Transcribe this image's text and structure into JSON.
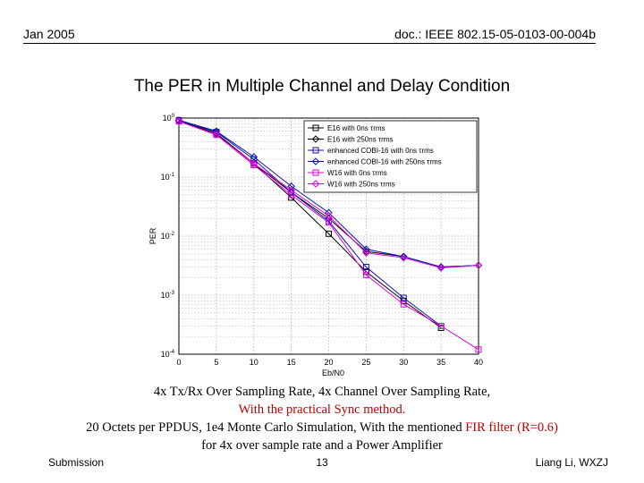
{
  "header": {
    "date": "Jan 2005",
    "doc_id": "doc.: IEEE 802.15-05-0103-00-004b"
  },
  "slide_title": "The PER in Multiple Channel and Delay Condition",
  "captions": {
    "line1": "4x Tx/Rx Over Sampling Rate, 4x Channel Over Sampling Rate,",
    "line2": "With the practical Sync method.",
    "line3_a": "20 Octets per PPDUS, 1e4 Monte Carlo Simulation, With the mentioned ",
    "line3_b": "FIR filter (R=0.6)",
    "line4": "for 4x over sample rate and a Power Amplifier"
  },
  "footer": {
    "left": "Submission",
    "page": "13",
    "right": "Liang Li, WXZJ"
  },
  "chart_data": {
    "type": "line",
    "title": "",
    "xlabel": "Eb/N0",
    "ylabel": "PER",
    "x": [
      0,
      5,
      10,
      15,
      20,
      25,
      30,
      35,
      40
    ],
    "xlim": [
      0,
      40
    ],
    "ylim": [
      0.0001,
      1
    ],
    "yscale": "log",
    "xticks": [
      "0",
      "5",
      "10",
      "15",
      "20",
      "25",
      "30",
      "35",
      "40"
    ],
    "yticks": [
      "10^0",
      "10^-1",
      "10^-2",
      "10^-3",
      "10^-4"
    ],
    "grid": true,
    "legend_position": "top-right",
    "series": [
      {
        "name": "E16 with 0ns τrms",
        "color": "#000000",
        "marker": "square",
        "values": [
          0.9,
          0.55,
          0.17,
          0.045,
          0.011,
          0.0025,
          0.0008,
          0.00028,
          null
        ]
      },
      {
        "name": "E16 with 250ns τrms",
        "color": "#000000",
        "marker": "diamond",
        "values": [
          0.9,
          0.55,
          0.17,
          0.055,
          0.02,
          0.0055,
          0.0045,
          0.003,
          0.0032
        ]
      },
      {
        "name": "enhanced COBI-16 with 0ns τrms",
        "color": "#1010b0",
        "marker": "square",
        "values": [
          0.92,
          0.58,
          0.2,
          0.055,
          0.018,
          0.003,
          0.0009,
          0.0003,
          null
        ]
      },
      {
        "name": "enhanced COBI-16 with 250ns τrms",
        "color": "#1010b0",
        "marker": "diamond",
        "values": [
          0.92,
          0.6,
          0.22,
          0.07,
          0.025,
          0.006,
          0.0045,
          0.003,
          0.0032
        ]
      },
      {
        "name": "W16 with 0ns τrms",
        "color": "#e000e0",
        "marker": "square",
        "values": [
          0.88,
          0.52,
          0.16,
          0.05,
          0.017,
          0.0022,
          0.0007,
          0.0003,
          0.00012
        ]
      },
      {
        "name": "W16 with 250ns τrms",
        "color": "#e000e0",
        "marker": "diamond",
        "values": [
          0.88,
          0.52,
          0.17,
          0.06,
          0.022,
          0.0052,
          0.0043,
          0.0029,
          0.0032
        ]
      }
    ]
  }
}
